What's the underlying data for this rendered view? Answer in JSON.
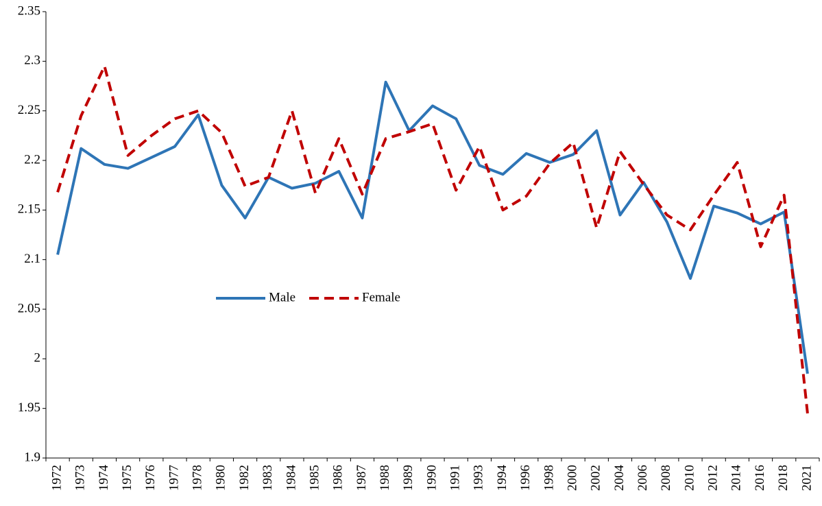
{
  "chart_data": {
    "type": "line",
    "categories": [
      "1972",
      "1973",
      "1974",
      "1975",
      "1976",
      "1977",
      "1978",
      "1980",
      "1982",
      "1983",
      "1984",
      "1985",
      "1986",
      "1987",
      "1988",
      "1989",
      "1990",
      "1991",
      "1993",
      "1994",
      "1996",
      "1998",
      "2000",
      "2002",
      "2004",
      "2006",
      "2008",
      "2010",
      "2012",
      "2014",
      "2016",
      "2018",
      "2021"
    ],
    "series": [
      {
        "name": "Male",
        "color": "#2e75b6",
        "dash": false,
        "values": [
          2.105,
          2.212,
          2.196,
          2.192,
          2.203,
          2.214,
          2.246,
          2.175,
          2.142,
          2.183,
          2.172,
          2.177,
          2.189,
          2.142,
          2.279,
          2.23,
          2.255,
          2.242,
          2.195,
          2.186,
          2.207,
          2.198,
          2.206,
          2.23,
          2.145,
          2.178,
          2.138,
          2.081,
          2.154,
          2.147,
          2.136,
          2.148,
          1.985
        ]
      },
      {
        "name": "Female",
        "color": "#c00000",
        "dash": true,
        "values": [
          2.168,
          2.245,
          2.295,
          2.205,
          2.225,
          2.242,
          2.25,
          2.228,
          2.174,
          2.183,
          2.25,
          2.167,
          2.222,
          2.166,
          2.222,
          2.229,
          2.237,
          2.17,
          2.214,
          2.15,
          2.164,
          2.197,
          2.218,
          2.132,
          2.209,
          2.176,
          2.145,
          2.13,
          2.165,
          2.198,
          2.113,
          2.165,
          1.945
        ]
      }
    ],
    "ylim": [
      1.9,
      2.35
    ],
    "yticks": [
      1.9,
      1.95,
      2,
      2.05,
      2.1,
      2.15,
      2.2,
      2.25,
      2.3,
      2.35
    ],
    "grid": false,
    "legend": "center-left"
  }
}
